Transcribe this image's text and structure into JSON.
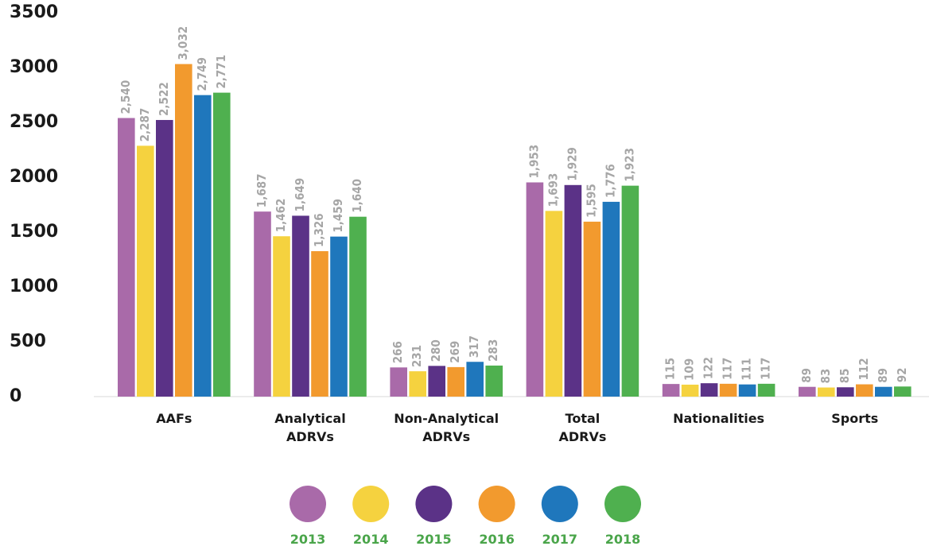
{
  "chart_data": {
    "type": "bar",
    "title": "",
    "xlabel": "",
    "ylabel": "",
    "ylim": [
      0,
      3500
    ],
    "yticks": [
      0,
      500,
      1000,
      1500,
      2000,
      2500,
      3000,
      3500
    ],
    "grid": false,
    "legend_position": "bottom",
    "categories": [
      [
        "AAFs"
      ],
      [
        "Analytical",
        "ADRVs"
      ],
      [
        "Non-Analytical",
        "ADRVs"
      ],
      [
        "Total",
        "ADRVs"
      ],
      [
        "Nationalities"
      ],
      [
        "Sports"
      ]
    ],
    "series": [
      {
        "name": "2013",
        "color": "#a96aa9",
        "values": [
          2540,
          1687,
          266,
          1953,
          115,
          89
        ],
        "labels": [
          "2,540",
          "1,687",
          "266",
          "1,953",
          "115",
          "89"
        ]
      },
      {
        "name": "2014",
        "color": "#f5d23f",
        "values": [
          2287,
          1462,
          231,
          1693,
          109,
          83
        ],
        "labels": [
          "2,287",
          "1,462",
          "231",
          "1,693",
          "109",
          "83"
        ]
      },
      {
        "name": "2015",
        "color": "#5b3287",
        "values": [
          2522,
          1649,
          280,
          1929,
          122,
          85
        ],
        "labels": [
          "2,522",
          "1,649",
          "280",
          "1,929",
          "122",
          "85"
        ]
      },
      {
        "name": "2016",
        "color": "#f29a2e",
        "values": [
          3032,
          1326,
          269,
          1595,
          117,
          112
        ],
        "labels": [
          "3,032",
          "1,326",
          "269",
          "1,595",
          "117",
          "112"
        ]
      },
      {
        "name": "2017",
        "color": "#1f77bc",
        "values": [
          2749,
          1459,
          317,
          1776,
          111,
          89
        ],
        "labels": [
          "2,749",
          "1,459",
          "317",
          "1,776",
          "111",
          "89"
        ]
      },
      {
        "name": "2018",
        "color": "#4fb04f",
        "values": [
          2771,
          1640,
          283,
          1923,
          117,
          92
        ],
        "labels": [
          "2,771",
          "1,640",
          "283",
          "1,923",
          "117",
          "92"
        ]
      }
    ]
  }
}
